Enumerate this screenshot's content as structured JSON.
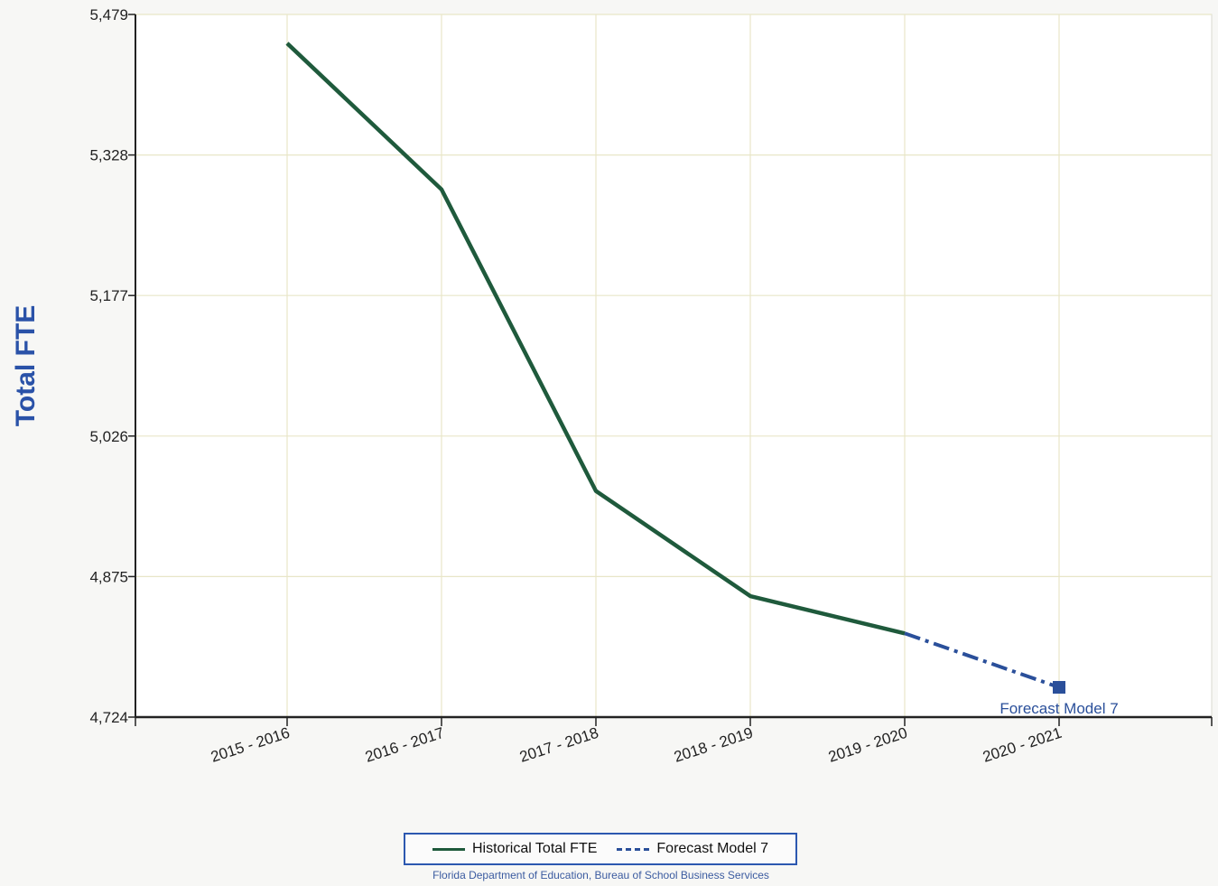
{
  "chart_data": {
    "type": "line",
    "title": "",
    "xlabel": "",
    "ylabel": "Total FTE",
    "categories": [
      "2015 - 2016",
      "2016 - 2017",
      "2017 - 2018",
      "2018 - 2019",
      "2019 - 2020",
      "2020 - 2021"
    ],
    "yticks": [
      "4,724",
      "4,875",
      "5,026",
      "5,177",
      "5,328",
      "5,479"
    ],
    "ylim": [
      4724,
      5479
    ],
    "grid": true,
    "series": [
      {
        "name": "Historical Total FTE",
        "color": "#1f5a3c",
        "style": "solid",
        "points": [
          {
            "x": "2015 - 2016",
            "y": 5448
          },
          {
            "x": "2016 - 2017",
            "y": 5291
          },
          {
            "x": "2017 - 2018",
            "y": 4967
          },
          {
            "x": "2018 - 2019",
            "y": 4854
          },
          {
            "x": "2019 - 2020",
            "y": 4814
          }
        ]
      },
      {
        "name": "Forecast Model 7",
        "color": "#2a4f9a",
        "style": "dashed",
        "points": [
          {
            "x": "2019 - 2020",
            "y": 4814
          },
          {
            "x": "2020 - 2021",
            "y": 4756
          }
        ]
      }
    ],
    "annotations": [
      {
        "x": "2020 - 2021",
        "y": 4756,
        "text": "Forecast Model 7"
      }
    ],
    "legend_placement": "bottom",
    "footer": "Florida Department of Education, Bureau of School Business Services"
  }
}
